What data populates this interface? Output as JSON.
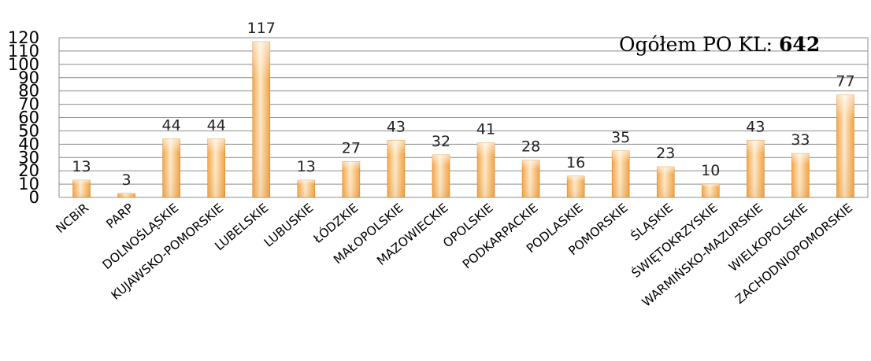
{
  "chart_data": {
    "type": "bar",
    "categories": [
      "NCBiR",
      "PARP",
      "DOLNOŚLĄSKIE",
      "KUJAWSKO-POMORSKIE",
      "LUBELSKIE",
      "LUBUSKIE",
      "ŁÓDZKIE",
      "MAŁOPOLSKIE",
      "MAZOWIECKIE",
      "OPOLSKIE",
      "PODKARPACKIE",
      "PODLASKIE",
      "POMORSKIE",
      "ŚLĄSKIE",
      "ŚWIĘTOKRZYSKIE",
      "WARMIŃSKO-MAZURSKIE",
      "WIELKOPOLSKIE",
      "ZACHODNIOPOMORSKIE"
    ],
    "values": [
      13,
      3,
      44,
      44,
      117,
      13,
      27,
      43,
      32,
      41,
      28,
      16,
      35,
      23,
      10,
      43,
      33,
      77
    ],
    "ylim": [
      0,
      120
    ],
    "yticks": [
      0,
      10,
      20,
      30,
      40,
      50,
      60,
      70,
      80,
      90,
      100,
      110,
      120
    ],
    "grid": true,
    "data_labels": true,
    "bar_color": "#f7b04a"
  },
  "annotation": {
    "label": "Ogółem PO KL:",
    "total": "642"
  }
}
